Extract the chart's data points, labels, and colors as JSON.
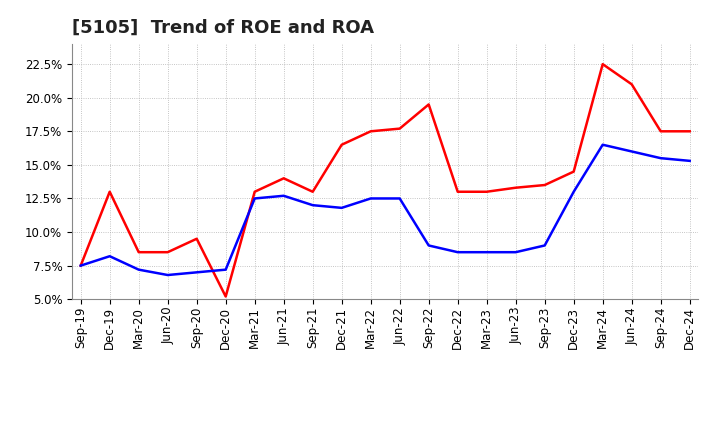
{
  "title": "[5105]  Trend of ROE and ROA",
  "labels": [
    "Sep-19",
    "Dec-19",
    "Mar-20",
    "Jun-20",
    "Sep-20",
    "Dec-20",
    "Mar-21",
    "Jun-21",
    "Sep-21",
    "Dec-21",
    "Mar-22",
    "Jun-22",
    "Sep-22",
    "Dec-22",
    "Mar-23",
    "Jun-23",
    "Sep-23",
    "Dec-23",
    "Mar-24",
    "Jun-24",
    "Sep-24",
    "Dec-24"
  ],
  "ROE": [
    7.5,
    13.0,
    8.5,
    8.5,
    9.5,
    5.2,
    13.0,
    14.0,
    13.0,
    16.5,
    17.5,
    17.7,
    19.5,
    13.0,
    13.0,
    13.3,
    13.5,
    14.5,
    22.5,
    21.0,
    17.5,
    17.5
  ],
  "ROA": [
    7.5,
    8.2,
    7.2,
    6.8,
    7.0,
    7.2,
    12.5,
    12.7,
    12.0,
    11.8,
    12.5,
    12.5,
    9.0,
    8.5,
    8.5,
    8.5,
    9.0,
    13.0,
    16.5,
    16.0,
    15.5,
    15.3
  ],
  "roe_color": "#ff0000",
  "roa_color": "#0000ff",
  "background_color": "#ffffff",
  "grid_color": "#aaaaaa",
  "ylim": [
    5.0,
    24.0
  ],
  "yticks": [
    5.0,
    7.5,
    10.0,
    12.5,
    15.0,
    17.5,
    20.0,
    22.5
  ],
  "title_fontsize": 13,
  "tick_fontsize": 8.5,
  "legend_fontsize": 10
}
